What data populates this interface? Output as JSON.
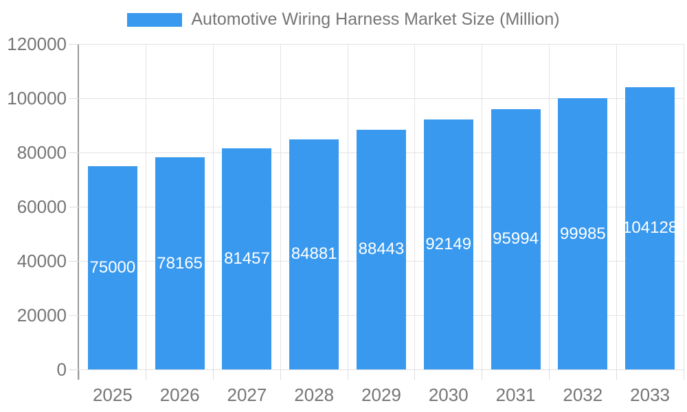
{
  "legend": {
    "label": "Automotive Wiring Harness Market Size (Million)"
  },
  "chart_data": {
    "type": "bar",
    "title": "Automotive Wiring Harness Market Size (Million)",
    "categories": [
      "2025",
      "2026",
      "2027",
      "2028",
      "2029",
      "2030",
      "2031",
      "2032",
      "2033"
    ],
    "values": [
      75000,
      78165,
      81457,
      84881,
      88443,
      92149,
      95994,
      99985,
      104128
    ],
    "xlabel": "",
    "ylabel": "",
    "ylim": [
      0,
      120000
    ],
    "yticks": [
      0,
      20000,
      40000,
      60000,
      80000,
      100000,
      120000
    ],
    "grid": true,
    "legend_position": "top",
    "bar_color": "#3999ee",
    "bar_label_color": "#ffffff",
    "axis_label_color": "#757575",
    "gridline_color": "#e3e3e3",
    "axis_line_color": "#9a9a9a",
    "background_color": "#ffffff"
  }
}
